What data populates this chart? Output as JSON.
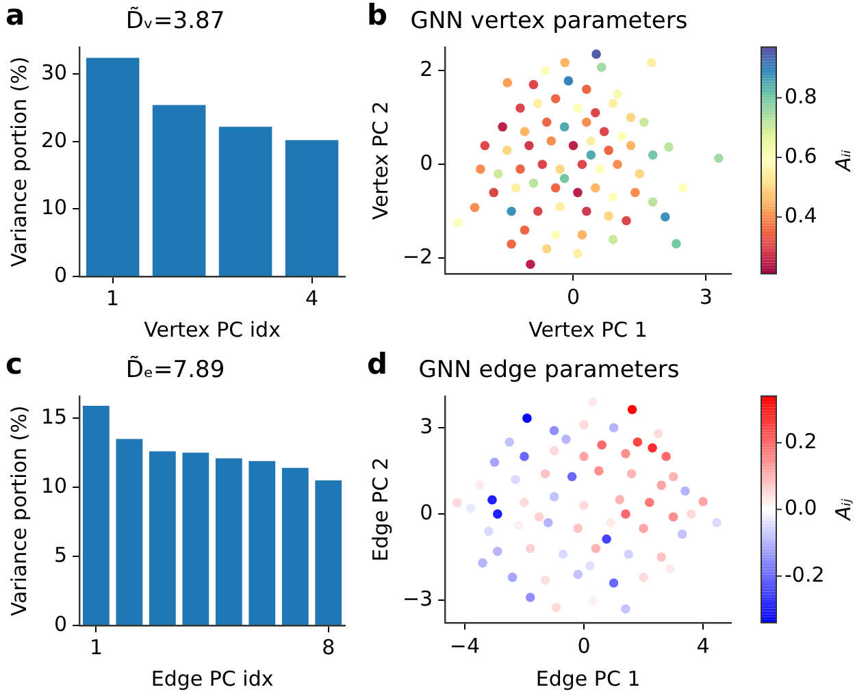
{
  "chart_data": [
    {
      "type": "bar",
      "title": "D̃ᵥ=3.87",
      "xlabel": "Vertex PC idx",
      "ylabel": "Variance portion (%)",
      "annotations": [
        "a"
      ],
      "categories": [
        "1",
        null,
        null,
        "4"
      ],
      "values": [
        32.4,
        25.4,
        22.2,
        20.2
      ],
      "color": "#1f77b4",
      "ylim": [
        0,
        34
      ],
      "yticks": [
        0,
        10,
        20,
        30
      ]
    },
    {
      "type": "scatter",
      "title": "GNN vertex parameters",
      "xlabel": "Vertex PC 1",
      "ylabel": "Vertex PC 2",
      "clabel": "Aᵢᵢ",
      "annotations": [
        "b"
      ],
      "x": [
        0.52,
        3.29,
        -2.61,
        2.33,
        2.08,
        1.77,
        0.64,
        -0.97,
        -2.23,
        2.48,
        2.16,
        -0.11,
        -1.49,
        -0.19,
        -0.63,
        -1.2,
        -0.8,
        -0.4,
        0.1,
        0.5,
        0.9,
        1.3,
        -1.6,
        -1.1,
        -0.6,
        -0.2,
        0.3,
        0.7,
        1.1,
        1.6,
        -2.0,
        -1.5,
        -1.0,
        -0.5,
        0.0,
        0.4,
        0.8,
        1.3,
        1.8,
        -2.1,
        -1.7,
        -1.2,
        -0.7,
        -0.3,
        0.2,
        0.6,
        1.0,
        1.5,
        -1.8,
        -1.3,
        -0.9,
        -0.4,
        0.1,
        0.5,
        0.9,
        1.4,
        1.8,
        -1.4,
        -0.8,
        -0.3,
        0.3,
        0.8,
        1.2,
        -1.1,
        -0.4,
        0.2,
        0.9,
        -0.6,
        0.1,
        -1.4,
        -0.2,
        0.4,
        -0.9,
        0.3,
        1.0
      ],
      "values": [
        2.35,
        0.13,
        -1.24,
        -1.69,
        -1.12,
        2.17,
        2.07,
        -2.13,
        -0.92,
        -0.5,
        0.37,
        1.78,
        1.74,
        2.17,
        2.0,
        1.2,
        1.3,
        1.4,
        1.2,
        1.1,
        1.3,
        1.0,
        0.8,
        0.7,
        0.9,
        0.8,
        0.9,
        0.7,
        0.6,
        0.9,
        0.4,
        0.3,
        0.4,
        0.5,
        0.4,
        0.5,
        0.3,
        0.4,
        0.2,
        -0.1,
        -0.2,
        -0.1,
        0.0,
        -0.1,
        0.0,
        -0.1,
        0.0,
        -0.2,
        -0.6,
        -0.5,
        -0.4,
        -0.5,
        -0.6,
        -0.5,
        -0.7,
        -0.6,
        -0.8,
        -1.0,
        -1.0,
        -0.9,
        -1.0,
        -1.1,
        -1.2,
        -1.4,
        -1.5,
        -1.5,
        -1.6,
        -1.8,
        -1.9,
        -1.7,
        -0.3,
        0.2,
        1.7,
        1.6,
        1.5
      ],
      "cvalues": [
        0.95,
        0.75,
        0.6,
        0.8,
        0.88,
        0.55,
        0.75,
        0.25,
        0.4,
        0.6,
        0.72,
        0.9,
        0.42,
        0.45,
        0.58,
        0.3,
        0.55,
        0.35,
        0.6,
        0.3,
        0.55,
        0.5,
        0.25,
        0.45,
        0.35,
        0.85,
        0.4,
        0.3,
        0.6,
        0.7,
        0.3,
        0.5,
        0.28,
        0.4,
        0.25,
        0.55,
        0.35,
        0.45,
        0.8,
        0.4,
        0.7,
        0.35,
        0.3,
        0.5,
        0.3,
        0.6,
        0.4,
        0.5,
        0.3,
        0.55,
        0.72,
        0.35,
        0.25,
        0.45,
        0.6,
        0.4,
        0.72,
        0.88,
        0.3,
        0.55,
        0.28,
        0.5,
        0.3,
        0.35,
        0.6,
        0.45,
        0.7,
        0.5,
        0.55,
        0.35,
        0.8,
        0.85,
        0.3,
        0.35,
        0.62
      ],
      "xlim": [
        -2.9,
        3.57
      ],
      "xticks": [
        0,
        3
      ],
      "ylim": [
        -2.33,
        2.5
      ],
      "yticks": [
        {
          "value": -2,
          "label": "−2"
        },
        0,
        2
      ],
      "clim": [
        0.21,
        0.97
      ],
      "cticks": [
        0.4,
        0.6,
        0.8
      ]
    },
    {
      "type": "bar",
      "title": "D̃ₑ=7.89",
      "xlabel": "Edge PC idx",
      "ylabel": "Variance portion (%)",
      "annotations": [
        "c"
      ],
      "categories": [
        "1",
        null,
        null,
        null,
        null,
        null,
        null,
        "8"
      ],
      "values": [
        15.9,
        13.5,
        12.6,
        12.5,
        12.1,
        11.9,
        11.4,
        10.5
      ],
      "color": "#1f77b4",
      "ylim": [
        0,
        16.6
      ],
      "yticks": [
        0,
        5,
        10,
        15
      ]
    },
    {
      "type": "scatter",
      "title": "GNN edge parameters",
      "xlabel": "Edge PC 1",
      "ylabel": "Edge PC 2",
      "clabel": "Aᵢⱼ",
      "annotations": [
        "d"
      ],
      "x": [
        1.62,
        -1.91,
        -3.08,
        -2.9,
        0.76,
        2.3,
        2.76,
        1.8,
        -4.26,
        4.46,
        4.0,
        -3.4,
        -0.93,
        1.4,
        0.3,
        -2.5,
        -1.0,
        0.0,
        1.0,
        2.5,
        -3.0,
        -2.0,
        -1.0,
        0.0,
        0.6,
        1.4,
        3.0,
        -3.5,
        -2.3,
        -1.3,
        -0.4,
        0.5,
        1.6,
        2.6,
        3.4,
        -3.8,
        -2.0,
        -1.0,
        0.0,
        1.2,
        2.2,
        3.0,
        -3.2,
        -2.2,
        -1.2,
        -0.2,
        0.9,
        2.0,
        3.3,
        -2.9,
        -1.8,
        -0.7,
        0.4,
        1.5,
        2.6,
        -2.4,
        -1.3,
        -0.2,
        1.0,
        2.0,
        -1.8,
        0.3,
        2.9,
        -1.5,
        1.4,
        0.2,
        -0.6,
        3.6
      ],
      "values": [
        3.63,
        3.33,
        0.49,
        0.0,
        -0.87,
        2.3,
        2.0,
        2.5,
        0.39,
        -0.3,
        0.43,
        -1.7,
        -3.25,
        -3.3,
        3.9,
        2.5,
        2.9,
        3.1,
        3.0,
        2.8,
        1.8,
        2.0,
        2.2,
        2.0,
        2.4,
        2.1,
        1.3,
        1.0,
        1.2,
        1.4,
        1.3,
        1.5,
        1.4,
        1.0,
        0.8,
        0.2,
        0.4,
        0.6,
        0.3,
        0.5,
        0.4,
        -0.1,
        -0.6,
        -0.4,
        -0.3,
        -0.5,
        -0.3,
        -0.5,
        -0.7,
        -1.3,
        -1.2,
        -1.4,
        -1.2,
        -1.4,
        -1.5,
        -2.2,
        -2.3,
        -2.1,
        -2.4,
        -2.2,
        -2.9,
        -3.0,
        -1.9,
        -0.1,
        0.0,
        -1.8,
        2.6,
        0.0
      ],
      "cvalues": [
        0.33,
        -0.33,
        -0.3,
        -0.3,
        -0.25,
        0.28,
        0.2,
        0.25,
        0.05,
        -0.05,
        0.12,
        -0.1,
        0.05,
        -0.08,
        0.03,
        -0.08,
        -0.15,
        0.05,
        -0.1,
        0.05,
        -0.12,
        -0.2,
        0.05,
        0.12,
        0.2,
        0.15,
        0.1,
        0.03,
        -0.05,
        0.08,
        -0.2,
        0.15,
        0.1,
        0.12,
        -0.1,
        -0.03,
        0.05,
        -0.08,
        0.05,
        0.1,
        0.18,
        0.15,
        -0.05,
        0.02,
        -0.1,
        0.08,
        0.03,
        0.12,
        -0.08,
        -0.1,
        0.06,
        -0.05,
        0.1,
        -0.06,
        0.08,
        -0.12,
        0.04,
        -0.08,
        -0.2,
        0.05,
        -0.15,
        0.02,
        0.03,
        0.06,
        0.2,
        -0.04,
        -0.1,
        0.05
      ],
      "xlim": [
        -4.66,
        4.94
      ],
      "xticks": [
        {
          "value": -4,
          "label": "−4"
        },
        0,
        4
      ],
      "ylim": [
        -3.78,
        4.1
      ],
      "yticks": [
        {
          "value": -3,
          "label": "−3"
        },
        0,
        3
      ],
      "clim": [
        -0.34,
        0.34
      ],
      "cticks": [
        {
          "value": -0.2,
          "label": "-0.2"
        },
        {
          "value": 0,
          "label": "0.0"
        },
        0.2
      ]
    }
  ]
}
